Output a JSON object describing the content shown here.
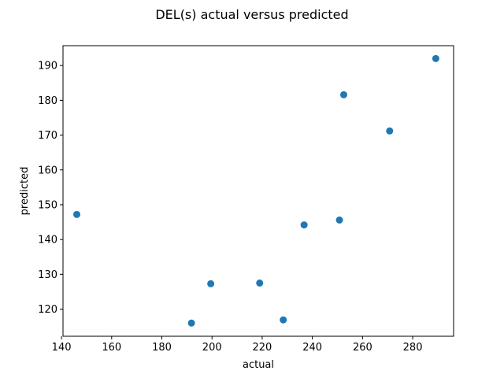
{
  "chart_data": {
    "type": "scatter",
    "title": "DEL(s) actual versus predicted",
    "xlabel": "actual",
    "ylabel": "predicted",
    "xlim": [
      140.6,
      296.3
    ],
    "ylim": [
      112.2,
      195.7
    ],
    "x_ticks": [
      140,
      160,
      180,
      200,
      220,
      240,
      260,
      280
    ],
    "y_ticks": [
      120,
      130,
      140,
      150,
      160,
      170,
      180,
      190
    ],
    "grid": false,
    "legend": "none",
    "point_color": "#1f77b4",
    "points": [
      {
        "x": 146.1,
        "y": 147.2
      },
      {
        "x": 191.8,
        "y": 116.0
      },
      {
        "x": 199.5,
        "y": 127.3
      },
      {
        "x": 219.0,
        "y": 127.5
      },
      {
        "x": 228.4,
        "y": 116.9
      },
      {
        "x": 236.7,
        "y": 144.2
      },
      {
        "x": 250.8,
        "y": 145.6
      },
      {
        "x": 252.5,
        "y": 181.6
      },
      {
        "x": 270.8,
        "y": 171.2
      },
      {
        "x": 289.2,
        "y": 192.0
      }
    ]
  }
}
